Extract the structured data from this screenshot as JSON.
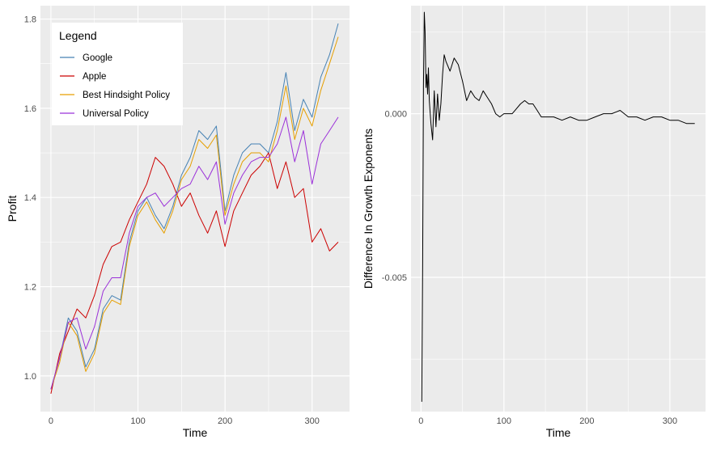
{
  "chart_data": [
    {
      "type": "line",
      "title": "",
      "xlabel": "Time",
      "ylabel": "Profit",
      "xlim": [
        -12,
        343
      ],
      "ylim": [
        0.92,
        1.83
      ],
      "x_ticks": [
        0,
        100,
        200,
        300
      ],
      "x_tick_labels": [
        "0",
        "100",
        "200",
        "300"
      ],
      "y_ticks": [
        1.0,
        1.2,
        1.4,
        1.6,
        1.8
      ],
      "y_tick_labels": [
        "1.0",
        "1.2",
        "1.4",
        "1.6",
        "1.8"
      ],
      "grid": true,
      "legend": {
        "title": "Legend",
        "position": "top-left"
      },
      "x": [
        0,
        10,
        20,
        30,
        40,
        50,
        60,
        70,
        80,
        90,
        100,
        110,
        120,
        130,
        140,
        150,
        160,
        170,
        180,
        190,
        200,
        210,
        220,
        230,
        240,
        250,
        260,
        270,
        280,
        290,
        300,
        310,
        320,
        330
      ],
      "series": [
        {
          "name": "Google",
          "color": "#4682b4",
          "values": [
            0.97,
            1.04,
            1.13,
            1.1,
            1.02,
            1.06,
            1.15,
            1.18,
            1.17,
            1.3,
            1.37,
            1.4,
            1.36,
            1.33,
            1.38,
            1.45,
            1.49,
            1.55,
            1.53,
            1.56,
            1.37,
            1.45,
            1.5,
            1.52,
            1.52,
            1.5,
            1.57,
            1.68,
            1.55,
            1.62,
            1.58,
            1.67,
            1.72,
            1.79
          ]
        },
        {
          "name": "Apple",
          "color": "#cc0000",
          "values": [
            0.96,
            1.05,
            1.1,
            1.15,
            1.13,
            1.18,
            1.25,
            1.29,
            1.3,
            1.35,
            1.39,
            1.43,
            1.49,
            1.47,
            1.43,
            1.38,
            1.41,
            1.36,
            1.32,
            1.37,
            1.29,
            1.37,
            1.41,
            1.45,
            1.47,
            1.5,
            1.42,
            1.48,
            1.4,
            1.42,
            1.3,
            1.33,
            1.28,
            1.3
          ]
        },
        {
          "name": "Best Hindsight Policy",
          "color": "#e69f00",
          "values": [
            0.97,
            1.03,
            1.12,
            1.09,
            1.01,
            1.05,
            1.14,
            1.17,
            1.16,
            1.29,
            1.36,
            1.39,
            1.35,
            1.32,
            1.37,
            1.44,
            1.47,
            1.53,
            1.51,
            1.54,
            1.36,
            1.43,
            1.48,
            1.5,
            1.5,
            1.48,
            1.55,
            1.65,
            1.53,
            1.6,
            1.56,
            1.64,
            1.7,
            1.76
          ]
        },
        {
          "name": "Universal Policy",
          "color": "#9b30d9",
          "values": [
            0.97,
            1.04,
            1.12,
            1.13,
            1.06,
            1.11,
            1.19,
            1.22,
            1.22,
            1.32,
            1.38,
            1.4,
            1.41,
            1.38,
            1.4,
            1.42,
            1.43,
            1.47,
            1.44,
            1.48,
            1.34,
            1.41,
            1.45,
            1.48,
            1.49,
            1.49,
            1.52,
            1.58,
            1.48,
            1.55,
            1.43,
            1.52,
            1.55,
            1.58
          ]
        }
      ]
    },
    {
      "type": "line",
      "title": "",
      "xlabel": "Time",
      "ylabel": "Difference In Growth Exponents",
      "xlim": [
        -12,
        343
      ],
      "ylim": [
        -0.0091,
        0.0033
      ],
      "x_ticks": [
        0,
        100,
        200,
        300
      ],
      "x_tick_labels": [
        "0",
        "100",
        "200",
        "300"
      ],
      "y_ticks": [
        -0.005,
        0.0
      ],
      "y_tick_labels": [
        "-0.005",
        "0.000"
      ],
      "grid": true,
      "series": [
        {
          "name": "",
          "color": "#000000",
          "x": [
            1,
            2,
            3,
            4,
            5,
            6,
            7,
            8,
            9,
            10,
            12,
            14,
            16,
            18,
            20,
            22,
            24,
            26,
            28,
            30,
            35,
            40,
            45,
            50,
            55,
            60,
            65,
            70,
            75,
            80,
            85,
            90,
            95,
            100,
            110,
            120,
            125,
            130,
            135,
            140,
            145,
            150,
            160,
            170,
            180,
            190,
            200,
            210,
            220,
            230,
            240,
            250,
            260,
            270,
            280,
            290,
            300,
            310,
            320,
            330
          ],
          "values": [
            -0.0088,
            -0.0045,
            0.0009,
            0.0031,
            0.0025,
            0.0008,
            0.0012,
            0.0006,
            0.0014,
            0.0004,
            -0.0003,
            -0.0008,
            0.0007,
            -0.0004,
            0.0006,
            -0.0002,
            0.0003,
            0.0012,
            0.0018,
            0.0016,
            0.0013,
            0.0017,
            0.0015,
            0.001,
            0.0004,
            0.0007,
            0.0005,
            0.0004,
            0.0007,
            0.0005,
            0.0003,
            0.0,
            -0.0001,
            0.0,
            0.0,
            0.0003,
            0.0004,
            0.0003,
            0.0003,
            0.0001,
            -0.0001,
            -0.0001,
            -0.0001,
            -0.0002,
            -0.0001,
            -0.0002,
            -0.0002,
            -0.0001,
            0.0,
            0.0,
            0.0001,
            -0.0001,
            -0.0001,
            -0.0002,
            -0.0001,
            -0.0001,
            -0.0002,
            -0.0002,
            -0.0003,
            -0.0003
          ]
        }
      ]
    }
  ]
}
